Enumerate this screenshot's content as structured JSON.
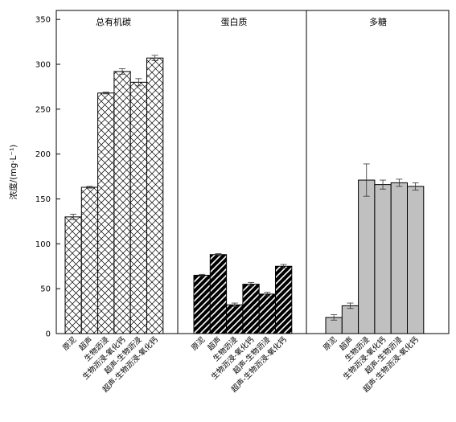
{
  "chart_data": {
    "type": "bar",
    "ylabel": "浓度/(mg·L⁻¹)",
    "ylim": [
      0,
      360
    ],
    "yticks": [
      0,
      50,
      100,
      150,
      200,
      250,
      300,
      350
    ],
    "grid": false,
    "groups": [
      {
        "title": "总有机碳",
        "fill": "crosshatch",
        "categories": [
          "原泥",
          "超声",
          "生物沥浸",
          "生物沥浸-氧化钙",
          "超声-生物沥浸",
          "超声-生物沥浸-氧化钙"
        ],
        "values": [
          130,
          163,
          268,
          292,
          280,
          307
        ],
        "errors": [
          3,
          1,
          1,
          3,
          4,
          3
        ]
      },
      {
        "title": "蛋白质",
        "fill": "diagonal-stripes",
        "categories": [
          "原泥",
          "超声",
          "生物沥浸",
          "生物沥浸-氧化钙",
          "超声-生物沥浸",
          "超声-生物沥浸-氧化钙"
        ],
        "values": [
          65,
          88,
          32,
          55,
          44,
          75
        ],
        "errors": [
          1,
          1,
          2,
          2,
          2,
          2
        ]
      },
      {
        "title": "多糖",
        "fill": "#c0c0c0",
        "categories": [
          "原泥",
          "超声",
          "生物沥浸",
          "生物沥浸-氧化钙",
          "超声-生物沥浸",
          "超声-生物沥浸-氧化钙"
        ],
        "values": [
          18,
          31,
          171,
          166,
          168,
          164
        ],
        "errors": [
          3,
          3,
          18,
          5,
          4,
          4
        ]
      }
    ]
  }
}
